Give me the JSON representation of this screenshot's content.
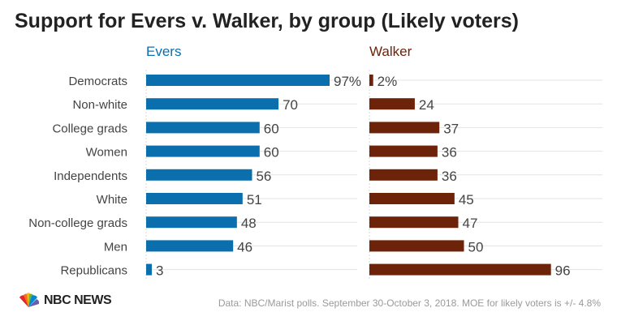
{
  "title": "Support for Evers v. Walker, by group (Likely voters)",
  "colors": {
    "evers": "#0c6fad",
    "walker": "#6d2309",
    "text": "#444444",
    "grid": "#e3e3e3"
  },
  "chart_data": {
    "type": "bar",
    "orientation": "horizontal",
    "categories": [
      "Democrats",
      "Non-white",
      "College grads",
      "Women",
      "Independents",
      "White",
      "Non-college grads",
      "Men",
      "Republicans"
    ],
    "series": [
      {
        "name": "Evers",
        "values": [
          97,
          70,
          60,
          60,
          56,
          51,
          48,
          46,
          3
        ],
        "labels": [
          "97%",
          "70",
          "60",
          "60",
          "56",
          "51",
          "48",
          "46",
          "3"
        ],
        "color": "#0c6fad"
      },
      {
        "name": "Walker",
        "values": [
          2,
          24,
          37,
          36,
          36,
          45,
          47,
          50,
          96
        ],
        "labels": [
          "2%",
          "24",
          "37",
          "36",
          "36",
          "45",
          "47",
          "50",
          "96"
        ],
        "color": "#6d2309"
      }
    ],
    "unit": "%",
    "grid": true
  },
  "footer": {
    "logo_text": "NBC NEWS",
    "logo_icon": "nbc-peacock-icon",
    "source": "Data: NBC/Marist polls. September 30-October 3, 2018. MOE for likely voters is +/- 4.8%"
  }
}
